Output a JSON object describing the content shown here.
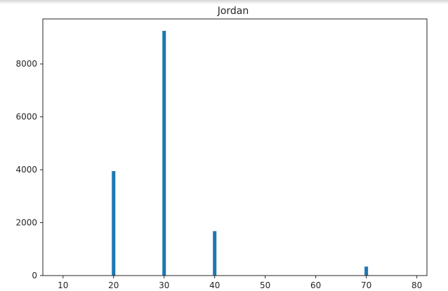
{
  "chart_data": {
    "type": "bar",
    "title": "Jordan",
    "xlabel": "",
    "ylabel": "",
    "xlim": [
      6,
      82
    ],
    "ylim": [
      0,
      9700
    ],
    "x_ticks": [
      10,
      20,
      30,
      40,
      50,
      60,
      70,
      80
    ],
    "y_ticks": [
      0,
      2000,
      4000,
      6000,
      8000
    ],
    "bar_color": "#1f77b4",
    "bar_width": 0.7,
    "grid": false,
    "legend": "none",
    "x": [
      20,
      30,
      40,
      70
    ],
    "values": [
      3950,
      9250,
      1680,
      340
    ]
  }
}
